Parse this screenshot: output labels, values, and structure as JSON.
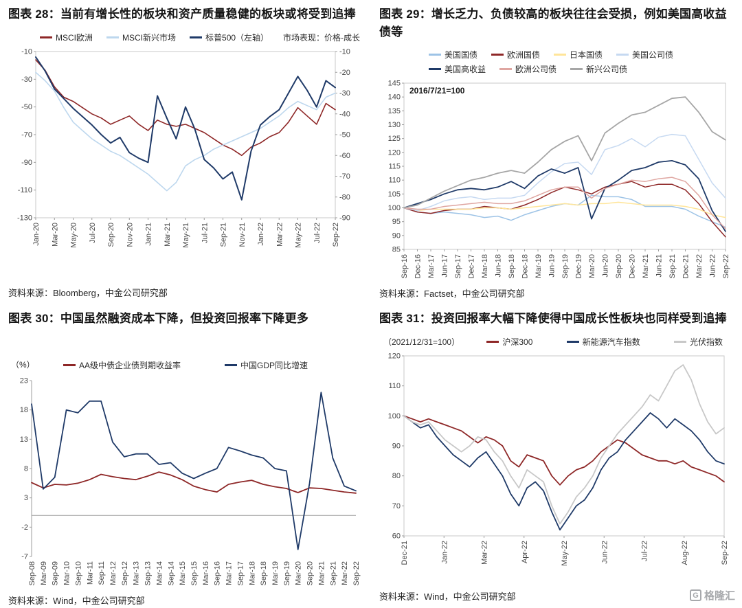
{
  "style": {
    "background": "#ffffff",
    "tick_color": "#464646",
    "frame_color": "#c9c9c9",
    "axis_color": "#9c9c9c",
    "dark_red": "#8e2727",
    "navy": "#1f3a68"
  },
  "watermark": {
    "text": "格隆汇",
    "icon_letter": "G"
  },
  "chart_data": [
    {
      "type": "line",
      "title": "图表 28：当前有增长性的板块和资产质量稳健的板块或将受到追捧",
      "source": "资料来源：Bloomberg，中金公司研究部",
      "note_right": "市场表现：价格-成长",
      "x_labels": [
        "Jan-20",
        "Mar-20",
        "May-20",
        "Jul-20",
        "Sep-20",
        "Nov-20",
        "Jan-21",
        "Mar-21",
        "May-21",
        "Jul-21",
        "Sep-21",
        "Nov-21",
        "Jan-22",
        "Mar-22",
        "May-22",
        "Jul-22",
        "Sep-22"
      ],
      "axes": {
        "left": {
          "ticks": [
            -10,
            -30,
            -50,
            -70,
            -90,
            -110,
            -130
          ],
          "lim": [
            -130,
            -10
          ]
        },
        "right": {
          "ticks": [
            -10,
            -20,
            -30,
            -40,
            -50,
            -60,
            -70,
            -80,
            -90
          ],
          "lim": [
            -90,
            -10
          ]
        }
      },
      "series": [
        {
          "name": "MSCI欧洲",
          "color": "#8e2727",
          "axis": "right",
          "width": 1.6,
          "values": [
            -14,
            -19,
            -27,
            -32,
            -34,
            -37,
            -40,
            -42,
            -45,
            -43,
            -41,
            -45,
            -48,
            -43,
            -45,
            -46,
            -45,
            -47,
            -49,
            -52,
            -55,
            -57,
            -60,
            -56,
            -54,
            -51,
            -49,
            -44,
            -37,
            -41,
            -45,
            -35,
            -38
          ]
        },
        {
          "name": "MSCI新兴市场",
          "color": "#bdd7ee",
          "axis": "right",
          "width": 1.6,
          "values": [
            -20,
            -24,
            -29,
            -37,
            -44,
            -48,
            -52,
            -55,
            -58,
            -60,
            -63,
            -66,
            -69,
            -73,
            -77,
            -73,
            -65,
            -62,
            -60,
            -57,
            -55,
            -53,
            -51,
            -49,
            -47,
            -44,
            -41,
            -37,
            -34,
            -36,
            -38,
            -32,
            -30
          ]
        },
        {
          "name": "标普500（左轴）",
          "color": "#1f3a68",
          "axis": "left",
          "width": 2,
          "values": [
            -14,
            -24,
            -37,
            -44,
            -51,
            -57,
            -63,
            -70,
            -76,
            -72,
            -83,
            -87,
            -90,
            -42,
            -58,
            -73,
            -50,
            -66,
            -88,
            -94,
            -102,
            -97,
            -117,
            -82,
            -63,
            -57,
            -52,
            -40,
            -28,
            -38,
            -50,
            -31,
            -36
          ]
        }
      ]
    },
    {
      "type": "line",
      "title": "图表 29：增长乏力、负债较高的板块往往会受损，例如美国高收益债等",
      "source": "资料来源：Factset，中金公司研究部",
      "annotation": "2016/7/21=100",
      "x_labels": [
        "Sep-16",
        "Dec-16",
        "Mar-17",
        "Jun-17",
        "Sep-17",
        "Dec-17",
        "Mar-18",
        "Jun-18",
        "Sep-18",
        "Dec-18",
        "Mar-19",
        "Jun-19",
        "Sep-19",
        "Dec-19",
        "Mar-20",
        "Jun-20",
        "Sep-20",
        "Dec-20",
        "Mar-21",
        "Jun-21",
        "Sep-21",
        "Dec-21",
        "Mar-22",
        "Jun-22",
        "Sep-22"
      ],
      "axes": {
        "left": {
          "ticks": [
            145,
            140,
            135,
            130,
            125,
            120,
            115,
            110,
            105,
            100,
            95,
            90,
            85
          ],
          "lim": [
            85,
            145
          ]
        }
      },
      "series": [
        {
          "name": "美国国债",
          "color": "#9dc3e6",
          "width": 1.5,
          "values": [
            100,
            98.5,
            98,
            98.5,
            98,
            97.5,
            96.5,
            97,
            95.5,
            97.5,
            99,
            100.5,
            101.5,
            101,
            104.5,
            104,
            104,
            103,
            100.5,
            100.5,
            100.5,
            99.5,
            97,
            95,
            93
          ]
        },
        {
          "name": "欧洲国债",
          "color": "#8e2727",
          "width": 1.5,
          "values": [
            100,
            98.5,
            98,
            99,
            99.5,
            99.5,
            100.5,
            100,
            99.5,
            101,
            103,
            105.5,
            107.5,
            106.5,
            105,
            107.5,
            108.5,
            109.5,
            107.5,
            108.5,
            108.5,
            106.5,
            101.5,
            95,
            89.5
          ]
        },
        {
          "name": "日本国债",
          "color": "#ffe599",
          "width": 1.5,
          "values": [
            100,
            99,
            99.5,
            99.5,
            99.5,
            99.5,
            100,
            100,
            99.5,
            100,
            100.5,
            101,
            101.5,
            101,
            101.5,
            101.5,
            102,
            101.5,
            101,
            101,
            101,
            100.5,
            99.5,
            97.5,
            96.5
          ]
        },
        {
          "name": "美国公司债",
          "color": "#c6d9f1",
          "width": 1.5,
          "values": [
            100,
            99,
            100.5,
            102.5,
            103.5,
            104,
            103,
            103.5,
            103.5,
            104.5,
            109,
            113,
            116,
            116.5,
            112,
            121,
            122.5,
            125,
            122,
            125.5,
            126.5,
            126,
            117.5,
            109,
            103.5
          ]
        },
        {
          "name": "美国高收益",
          "color": "#1f3a68",
          "width": 1.8,
          "values": [
            100,
            101.5,
            103,
            105,
            106.5,
            107,
            106.5,
            107.5,
            109.5,
            107,
            111.5,
            114,
            112.5,
            114.5,
            96,
            107,
            110,
            113.5,
            114.5,
            116.5,
            117,
            115.5,
            110.5,
            99,
            91.5
          ]
        },
        {
          "name": "欧洲公司债",
          "color": "#dfa6a1",
          "width": 1.5,
          "values": [
            100,
            99.5,
            99.5,
            100.5,
            101,
            101.5,
            102,
            101.5,
            101.5,
            102.5,
            104.5,
            106.5,
            107.5,
            107.5,
            103.5,
            107,
            108.5,
            110,
            109.5,
            110.5,
            111,
            109.5,
            104.5,
            97.5,
            92.5
          ]
        },
        {
          "name": "新兴公司债",
          "color": "#a6a6a6",
          "width": 1.8,
          "values": [
            100,
            101,
            103.5,
            106,
            108,
            110,
            111,
            112.5,
            113.5,
            112.5,
            116.5,
            121,
            124,
            126,
            117,
            127,
            130.5,
            133.5,
            134.5,
            137,
            139.5,
            140,
            134.5,
            127.5,
            124.5
          ]
        }
      ]
    },
    {
      "type": "line",
      "title": "图表 30：中国虽然融资成本下降，但投资回报率下降更多",
      "source": "资料来源：Wind，中金公司研究部",
      "note_left": "（%）",
      "zero_line": 0,
      "x_labels": [
        "Sep-08",
        "Mar-09",
        "Sep-09",
        "Mar-10",
        "Sep-10",
        "Mar-11",
        "Sep-11",
        "Mar-12",
        "Sep-12",
        "Mar-13",
        "Sep-13",
        "Mar-14",
        "Sep-14",
        "Mar-15",
        "Sep-15",
        "Mar-16",
        "Sep-16",
        "Mar-17",
        "Sep-17",
        "Mar-18",
        "Sep-18",
        "Mar-19",
        "Sep-19",
        "Mar-20",
        "Sep-20",
        "Mar-21",
        "Sep-21",
        "Mar-22",
        "Sep-22"
      ],
      "axes": {
        "left": {
          "ticks": [
            23,
            18,
            13,
            8,
            3,
            -2,
            -7
          ],
          "lim": [
            -7,
            23
          ]
        }
      },
      "series": [
        {
          "name": "AA级中债企业债到期收益率",
          "color": "#8e2727",
          "width": 1.8,
          "values": [
            5.6,
            4.7,
            5.3,
            5.2,
            5.5,
            6.1,
            7.0,
            6.6,
            6.3,
            6.1,
            6.7,
            7.4,
            6.9,
            6.1,
            5.0,
            4.4,
            4.0,
            5.3,
            5.7,
            6.0,
            5.3,
            4.9,
            4.6,
            3.9,
            4.7,
            4.6,
            4.3,
            4.0,
            3.8
          ]
        },
        {
          "name": "中国GDP同比增速",
          "color": "#1f3a68",
          "width": 1.8,
          "values": [
            19,
            4.5,
            6.5,
            18,
            17.5,
            19.5,
            19.5,
            12.5,
            10,
            10.5,
            10.5,
            8.7,
            9,
            7.2,
            6.3,
            7.2,
            8,
            11.6,
            11,
            10.3,
            9.8,
            8,
            7.6,
            -5.8,
            5.5,
            21,
            9.8,
            5,
            4.2
          ]
        }
      ]
    },
    {
      "type": "line",
      "title": "图表 31：投资回报率大幅下降使得中国成长性板块也同样受到追捧",
      "source": "资料来源：Wind，中金公司研究部",
      "note_left": "（2021/12/31=100）",
      "x_labels": [
        "Dec-21",
        "Jan-22",
        "Mar-22",
        "Apr-22",
        "May-22",
        "Jun-22",
        "Jul-22",
        "Aug-22",
        "Sep-22"
      ],
      "axes": {
        "left": {
          "ticks": [
            120,
            110,
            100,
            90,
            80,
            70,
            60
          ],
          "lim": [
            60,
            120
          ]
        }
      },
      "series": [
        {
          "name": "沪深300",
          "color": "#8e2727",
          "width": 1.8,
          "values": [
            100,
            99,
            98,
            99,
            98,
            97,
            96,
            95,
            93,
            91,
            93,
            92,
            90,
            85,
            83,
            87,
            86,
            85,
            80,
            77,
            80,
            82,
            83,
            85,
            88,
            90,
            92,
            91,
            89,
            87,
            86,
            85,
            85,
            84,
            85,
            83,
            82,
            81,
            80,
            78
          ]
        },
        {
          "name": "新能源汽车指数",
          "color": "#1f3a68",
          "width": 1.8,
          "values": [
            100,
            98,
            96,
            97,
            93,
            90,
            87,
            85,
            83,
            86,
            88,
            84,
            80,
            74,
            70,
            76,
            78,
            75,
            68,
            62,
            66,
            70,
            72,
            76,
            82,
            86,
            88,
            92,
            95,
            98,
            101,
            99,
            96,
            99,
            97,
            95,
            92,
            88,
            85,
            84
          ]
        },
        {
          "name": "光伏指数",
          "color": "#c8c8c8",
          "width": 1.8,
          "values": [
            100,
            98,
            97,
            98,
            95,
            92,
            90,
            88,
            90,
            93,
            92,
            88,
            85,
            80,
            76,
            82,
            80,
            78,
            70,
            64,
            68,
            73,
            76,
            80,
            86,
            90,
            94,
            97,
            100,
            103,
            107,
            105,
            110,
            115,
            117,
            112,
            104,
            98,
            94,
            96
          ]
        }
      ]
    }
  ]
}
